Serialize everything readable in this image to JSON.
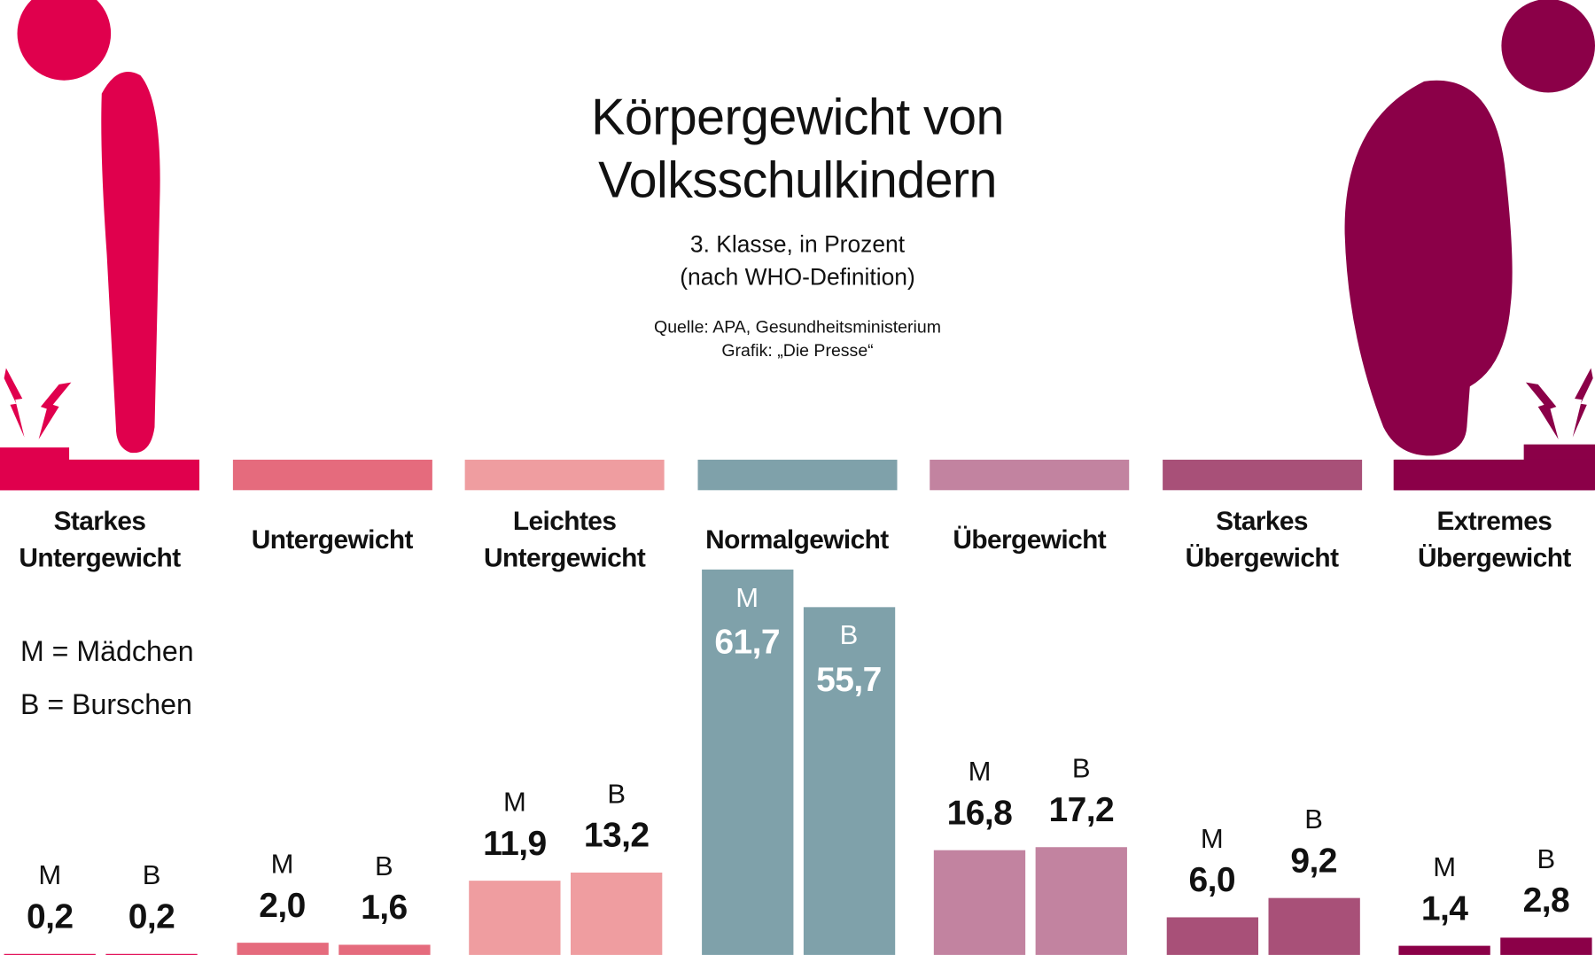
{
  "chart_data": {
    "type": "bar",
    "title": "Körpergewicht von Volksschulkindern",
    "subtitle": [
      "3. Klasse, in Prozent",
      "(nach WHO-Definition)"
    ],
    "source": [
      "Quelle: APA, Gesundheitsministerium",
      "Grafik: „Die Presse“"
    ],
    "legend": [
      "M = Mädchen",
      "B = Burschen"
    ],
    "categories": [
      "Starkes Untergewicht",
      "Untergewicht",
      "Leichtes Untergewicht",
      "Normalgewicht",
      "Übergewicht",
      "Starkes Übergewicht",
      "Extremes Übergewicht"
    ],
    "colors": [
      "#e0004d",
      "#e56b7d",
      "#ef9da0",
      "#7fa1aa",
      "#c283a0",
      "#a85078",
      "#8b0048"
    ],
    "series": [
      {
        "name": "M",
        "values": [
          0.2,
          2.0,
          11.9,
          61.7,
          16.8,
          6.0,
          1.4
        ],
        "value_labels": [
          "0,2",
          "2,0",
          "11,9",
          "61,7",
          "16,8",
          "6,0",
          "1,4"
        ]
      },
      {
        "name": "B",
        "values": [
          0.2,
          1.6,
          13.2,
          55.7,
          17.2,
          9.2,
          2.8
        ],
        "value_labels": [
          "0,2",
          "1,6",
          "13,2",
          "55,7",
          "17,2",
          "9,2",
          "2,8"
        ]
      }
    ]
  }
}
